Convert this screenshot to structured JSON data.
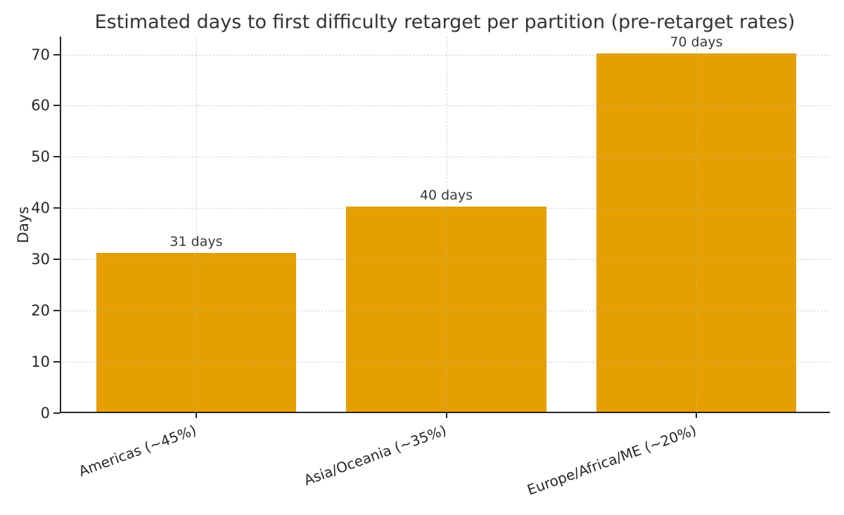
{
  "figure": {
    "title": "Estimated days to first difficulty retarget per partition (pre-retarget rates)",
    "ylabel": "Days"
  },
  "chart_data": {
    "type": "bar",
    "title": "Estimated days to first difficulty retarget per partition (pre-retarget rates)",
    "xlabel": "",
    "ylabel": "Days",
    "categories": [
      "Americas (~45%)",
      "Asia/Oceania (~35%)",
      "Europe/Africa/ME (~20%)"
    ],
    "values": [
      31,
      40,
      70
    ],
    "bar_labels": [
      "31 days",
      "40 days",
      "70 days"
    ],
    "yticks": [
      0,
      10,
      20,
      30,
      40,
      50,
      60,
      70
    ],
    "ylim": [
      0,
      73.5
    ],
    "xlim_units": [
      -0.54,
      2.54
    ],
    "bar_width_units": 0.8,
    "x_tick_rotation_deg": 20,
    "grid": "both, dashed, drawn above bars",
    "legend": "none",
    "colors": {
      "bar": "#E69F00",
      "grid": "#b4b4b4",
      "axis": "#262626",
      "title_text": "#333333",
      "tick_text": "#262626",
      "annotation_text": "#3a3a3a",
      "background": "#ffffff"
    }
  }
}
